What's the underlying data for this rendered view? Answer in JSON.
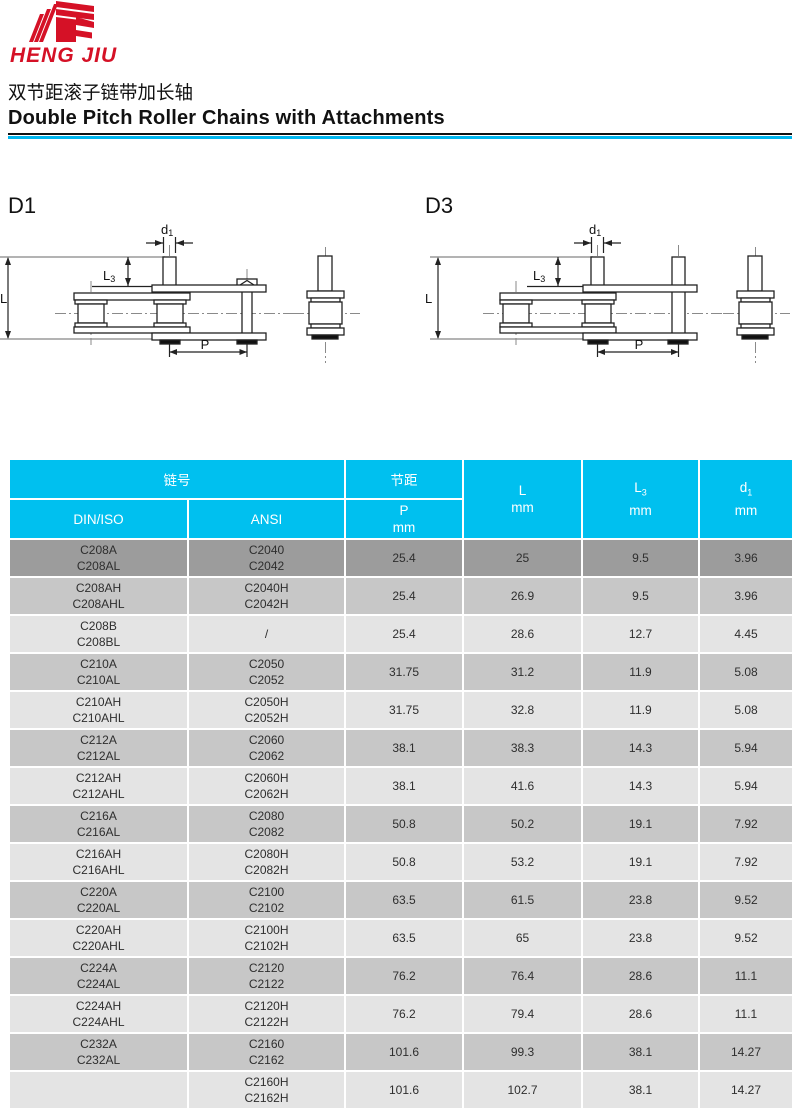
{
  "logo": {
    "brand": "HENG JIU"
  },
  "title": {
    "zh": "双节距滚子链带加长轴",
    "en": "Double Pitch Roller Chains with Attachments"
  },
  "diagrams": {
    "d1_label": "D1",
    "d3_label": "D3",
    "dims": {
      "l": "L",
      "l3_main": "L",
      "l3_sub": "3",
      "d_main": "d",
      "d_sub": "1",
      "p": "P"
    }
  },
  "table": {
    "header": {
      "chain_no": "链号",
      "din_iso": "DIN/ISO",
      "ansi": "ANSI",
      "pitch": "节距",
      "p_main": "P",
      "l_main": "L",
      "l3_main": "L",
      "l3_sub": "3",
      "d1_main": "d",
      "d1_sub": "1",
      "mm": "mm"
    },
    "rows": [
      {
        "din": [
          "C208A",
          "C208AL"
        ],
        "ansi": [
          "C2040",
          "C2042"
        ],
        "p": "25.4",
        "l": "25",
        "l3": "9.5",
        "d1": "3.96"
      },
      {
        "din": [
          "C208AH",
          "C208AHL"
        ],
        "ansi": [
          "C2040H",
          "C2042H"
        ],
        "p": "25.4",
        "l": "26.9",
        "l3": "9.5",
        "d1": "3.96"
      },
      {
        "din": [
          "C208B",
          "C208BL"
        ],
        "ansi": [
          "/"
        ],
        "p": "25.4",
        "l": "28.6",
        "l3": "12.7",
        "d1": "4.45"
      },
      {
        "din": [
          "C210A",
          "C210AL"
        ],
        "ansi": [
          "C2050",
          "C2052"
        ],
        "p": "31.75",
        "l": "31.2",
        "l3": "11.9",
        "d1": "5.08"
      },
      {
        "din": [
          "C210AH",
          "C210AHL"
        ],
        "ansi": [
          "C2050H",
          "C2052H"
        ],
        "p": "31.75",
        "l": "32.8",
        "l3": "11.9",
        "d1": "5.08"
      },
      {
        "din": [
          "C212A",
          "C212AL"
        ],
        "ansi": [
          "C2060",
          "C2062"
        ],
        "p": "38.1",
        "l": "38.3",
        "l3": "14.3",
        "d1": "5.94"
      },
      {
        "din": [
          "C212AH",
          "C212AHL"
        ],
        "ansi": [
          "C2060H",
          "C2062H"
        ],
        "p": "38.1",
        "l": "41.6",
        "l3": "14.3",
        "d1": "5.94"
      },
      {
        "din": [
          "C216A",
          "C216AL"
        ],
        "ansi": [
          "C2080",
          "C2082"
        ],
        "p": "50.8",
        "l": "50.2",
        "l3": "19.1",
        "d1": "7.92"
      },
      {
        "din": [
          "C216AH",
          "C216AHL"
        ],
        "ansi": [
          "C2080H",
          "C2082H"
        ],
        "p": "50.8",
        "l": "53.2",
        "l3": "19.1",
        "d1": "7.92"
      },
      {
        "din": [
          "C220A",
          "C220AL"
        ],
        "ansi": [
          "C2100",
          "C2102"
        ],
        "p": "63.5",
        "l": "61.5",
        "l3": "23.8",
        "d1": "9.52"
      },
      {
        "din": [
          "C220AH",
          "C220AHL"
        ],
        "ansi": [
          "C2100H",
          "C2102H"
        ],
        "p": "63.5",
        "l": "65",
        "l3": "23.8",
        "d1": "9.52"
      },
      {
        "din": [
          "C224A",
          "C224AL"
        ],
        "ansi": [
          "C2120",
          "C2122"
        ],
        "p": "76.2",
        "l": "76.4",
        "l3": "28.6",
        "d1": "11.1"
      },
      {
        "din": [
          "C224AH",
          "C224AHL"
        ],
        "ansi": [
          "C2120H",
          "C2122H"
        ],
        "p": "76.2",
        "l": "79.4",
        "l3": "28.6",
        "d1": "11.1"
      },
      {
        "din": [
          "C232A",
          "C232AL"
        ],
        "ansi": [
          "C2160",
          "C2162"
        ],
        "p": "101.6",
        "l": "99.3",
        "l3": "38.1",
        "d1": "14.27"
      },
      {
        "din": [],
        "ansi": [
          "C2160H",
          "C2162H"
        ],
        "p": "101.6",
        "l": "102.7",
        "l3": "38.1",
        "d1": "14.27"
      }
    ]
  },
  "colors": {
    "accent_cyan": "#00c0ef",
    "underline_cyan": "#00b6ef",
    "brand_red": "#d51126",
    "row_dark": "#9c9c9c",
    "row_medium": "#c7c7c7",
    "row_light": "#e4e4e4"
  }
}
